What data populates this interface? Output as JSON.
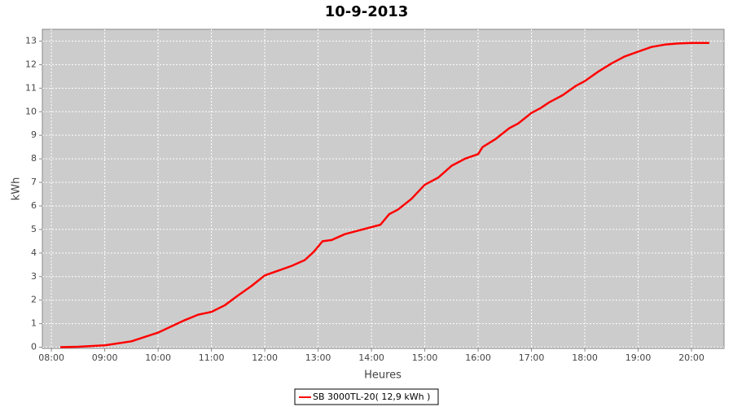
{
  "chart_data": {
    "type": "line",
    "title": "10-9-2013",
    "x_label": "Heures",
    "y_label": "kWh",
    "x": [
      8.167,
      8.5,
      9.0,
      9.5,
      10.0,
      10.5,
      10.75,
      11.0,
      11.25,
      11.5,
      11.75,
      12.0,
      12.25,
      12.5,
      12.75,
      12.917,
      13.083,
      13.25,
      13.5,
      13.75,
      14.0,
      14.167,
      14.333,
      14.5,
      14.75,
      15.0,
      15.25,
      15.5,
      15.75,
      16.0,
      16.083,
      16.333,
      16.583,
      16.75,
      17.0,
      17.167,
      17.333,
      17.583,
      17.833,
      18.0,
      18.25,
      18.5,
      18.75,
      19.0,
      19.25,
      19.5,
      19.75,
      20.0,
      20.333
    ],
    "series": [
      {
        "name": "SB 3000TL-20( 12,9 kWh )",
        "color": "#ff0000",
        "values": [
          0.0,
          0.02,
          0.08,
          0.25,
          0.62,
          1.15,
          1.38,
          1.5,
          1.78,
          2.2,
          2.6,
          3.05,
          3.25,
          3.45,
          3.7,
          4.05,
          4.5,
          4.55,
          4.8,
          4.95,
          5.1,
          5.2,
          5.65,
          5.85,
          6.3,
          6.9,
          7.2,
          7.7,
          8.0,
          8.2,
          8.5,
          8.85,
          9.3,
          9.5,
          9.95,
          10.15,
          10.4,
          10.7,
          11.1,
          11.3,
          11.7,
          12.05,
          12.35,
          12.55,
          12.75,
          12.85,
          12.9,
          12.92,
          12.92
        ]
      }
    ],
    "xlim": [
      7.83,
      20.61
    ],
    "xticks": [
      {
        "value": 8,
        "label": "08:00"
      },
      {
        "value": 9,
        "label": "09:00"
      },
      {
        "value": 10,
        "label": "10:00"
      },
      {
        "value": 11,
        "label": "11:00"
      },
      {
        "value": 12,
        "label": "12:00"
      },
      {
        "value": 13,
        "label": "13:00"
      },
      {
        "value": 14,
        "label": "14:00"
      },
      {
        "value": 15,
        "label": "15:00"
      },
      {
        "value": 16,
        "label": "16:00"
      },
      {
        "value": 17,
        "label": "17:00"
      },
      {
        "value": 18,
        "label": "18:00"
      },
      {
        "value": 19,
        "label": "19:00"
      },
      {
        "value": 20,
        "label": "20:00"
      }
    ],
    "ylim": [
      -0.05,
      13.5
    ],
    "yticks": [
      0,
      1,
      2,
      3,
      4,
      5,
      6,
      7,
      8,
      9,
      10,
      11,
      12,
      13
    ],
    "grid": true,
    "legend": "bottom"
  }
}
